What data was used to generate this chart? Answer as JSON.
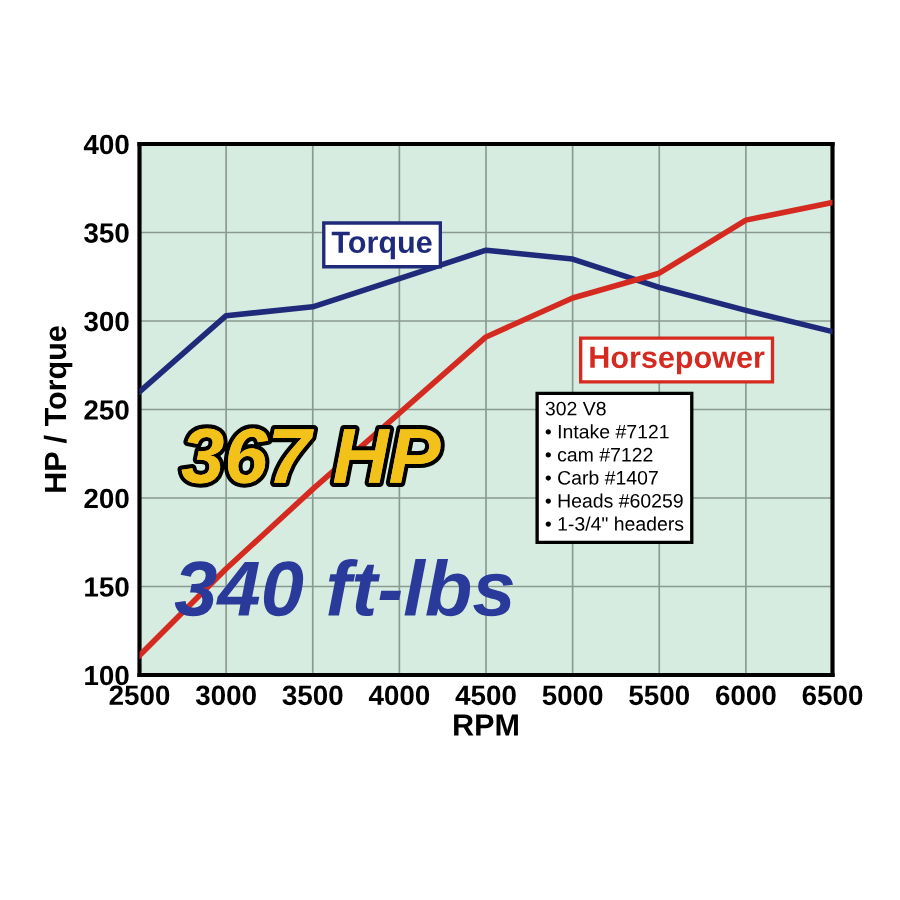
{
  "chart_data": {
    "type": "line",
    "xlabel": "RPM",
    "ylabel": "HP / Torque",
    "x": [
      2500,
      3000,
      3500,
      4000,
      4500,
      5000,
      5500,
      6000,
      6500
    ],
    "series": [
      {
        "name": "Torque",
        "color": "#1f2a7a",
        "values": [
          260,
          303,
          308,
          324,
          340,
          335,
          319,
          306,
          294
        ]
      },
      {
        "name": "Horsepower",
        "color": "#d42a20",
        "values": [
          111,
          160,
          205,
          248,
          291,
          313,
          327,
          357,
          367
        ]
      }
    ],
    "xlim": [
      2500,
      6500
    ],
    "xticks": [
      2500,
      3000,
      3500,
      4000,
      4500,
      5000,
      5500,
      6000,
      6500
    ],
    "ylim": [
      100,
      400
    ],
    "yticks": [
      100,
      150,
      200,
      250,
      300,
      350,
      400
    ],
    "grid": true,
    "marker": "none",
    "line_style": "solid",
    "annotations": [
      "367 HP",
      "340 ft-lbs",
      "302 V8\n• Intake #7121\n• cam #7122\n• Carb #1407\n• Heads #60259\n• 1-3/4\" headers"
    ]
  }
}
